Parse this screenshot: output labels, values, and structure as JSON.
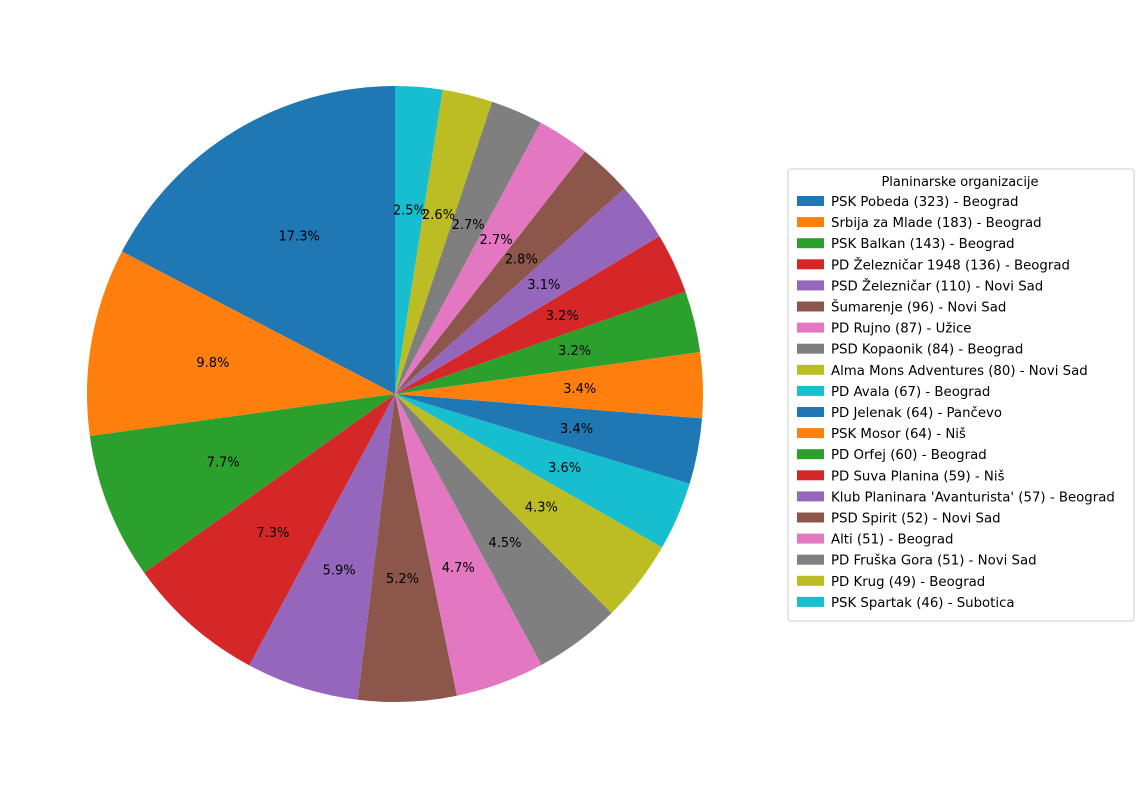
{
  "chart_data": {
    "type": "pie",
    "legend_title": "Planinarske organizacije",
    "legend_position": "right",
    "start_angle_deg": 90,
    "direction": "counterclockwise",
    "slices": [
      {
        "label": "PSK Pobeda (323) - Beograd",
        "value": 323,
        "pct_label": "17.3%",
        "color": "#1f77b4"
      },
      {
        "label": "Srbija za Mlade (183) - Beograd",
        "value": 183,
        "pct_label": "9.8%",
        "color": "#ff7f0e"
      },
      {
        "label": "PSK Balkan (143) - Beograd",
        "value": 143,
        "pct_label": "7.7%",
        "color": "#2ca02c"
      },
      {
        "label": "PD Železničar 1948 (136) - Beograd",
        "value": 136,
        "pct_label": "7.3%",
        "color": "#d62728"
      },
      {
        "label": "PSD Železničar (110) - Novi Sad",
        "value": 110,
        "pct_label": "5.9%",
        "color": "#9467bd"
      },
      {
        "label": "Šumarenje (96) - Novi Sad",
        "value": 96,
        "pct_label": "5.2%",
        "color": "#8c564b"
      },
      {
        "label": "PD Rujno (87) - Užice",
        "value": 87,
        "pct_label": "4.7%",
        "color": "#e377c2"
      },
      {
        "label": "PSD Kopaonik (84) - Beograd",
        "value": 84,
        "pct_label": "4.5%",
        "color": "#7f7f7f"
      },
      {
        "label": "Alma Mons Adventures (80) - Novi Sad",
        "value": 80,
        "pct_label": "4.3%",
        "color": "#bcbd22"
      },
      {
        "label": "PD Avala (67) - Beograd",
        "value": 67,
        "pct_label": "3.6%",
        "color": "#17becf"
      },
      {
        "label": "PD Jelenak (64) - Pančevo",
        "value": 64,
        "pct_label": "3.4%",
        "color": "#1f77b4"
      },
      {
        "label": "PSK Mosor (64) - Niš",
        "value": 64,
        "pct_label": "3.4%",
        "color": "#ff7f0e"
      },
      {
        "label": "PD Orfej (60) - Beograd",
        "value": 60,
        "pct_label": "3.2%",
        "color": "#2ca02c"
      },
      {
        "label": "PD Suva Planina (59) - Niš",
        "value": 59,
        "pct_label": "3.2%",
        "color": "#d62728"
      },
      {
        "label": "Klub Planinara 'Avanturista' (57) - Beograd",
        "value": 57,
        "pct_label": "3.1%",
        "color": "#9467bd"
      },
      {
        "label": "PSD Spirit (52) - Novi Sad",
        "value": 52,
        "pct_label": "2.8%",
        "color": "#8c564b"
      },
      {
        "label": "Alti (51) - Beograd",
        "value": 51,
        "pct_label": "2.7%",
        "color": "#e377c2"
      },
      {
        "label": "PD Fruška Gora (51) - Novi Sad",
        "value": 51,
        "pct_label": "2.7%",
        "color": "#7f7f7f"
      },
      {
        "label": "PD Krug (49) - Beograd",
        "value": 49,
        "pct_label": "2.6%",
        "color": "#bcbd22"
      },
      {
        "label": "PSK Spartak (46) - Subotica",
        "value": 46,
        "pct_label": "2.5%",
        "color": "#17becf"
      }
    ]
  }
}
